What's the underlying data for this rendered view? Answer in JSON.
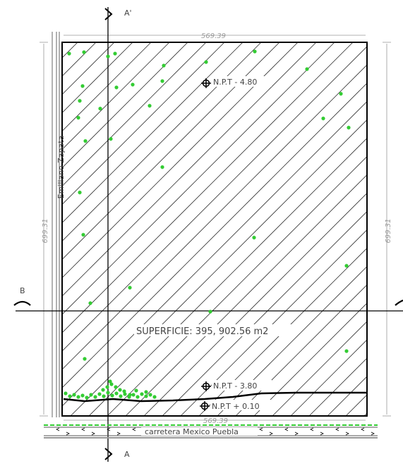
{
  "labels": {
    "section_top": "A'",
    "section_bottom": "A",
    "section_left": "B",
    "street_left": "Emiliano Zapata",
    "road_bottom": "carretera Mexico Puebla",
    "superficie": "SUPERFICIE: 395, 902.56 m2",
    "npt_top": "N.P.T - 4.80",
    "npt_mid": "N.P.T - 3.80",
    "npt_bottom": "N.P.T + 0.10",
    "dim_top": "569.39",
    "dim_bottom": "569.39",
    "dim_left": "699.31",
    "dim_right": "699.31"
  },
  "colors": {
    "line": "#000000",
    "hatch": "#333333",
    "tree": "#33cc33",
    "dimension": "#999999"
  }
}
